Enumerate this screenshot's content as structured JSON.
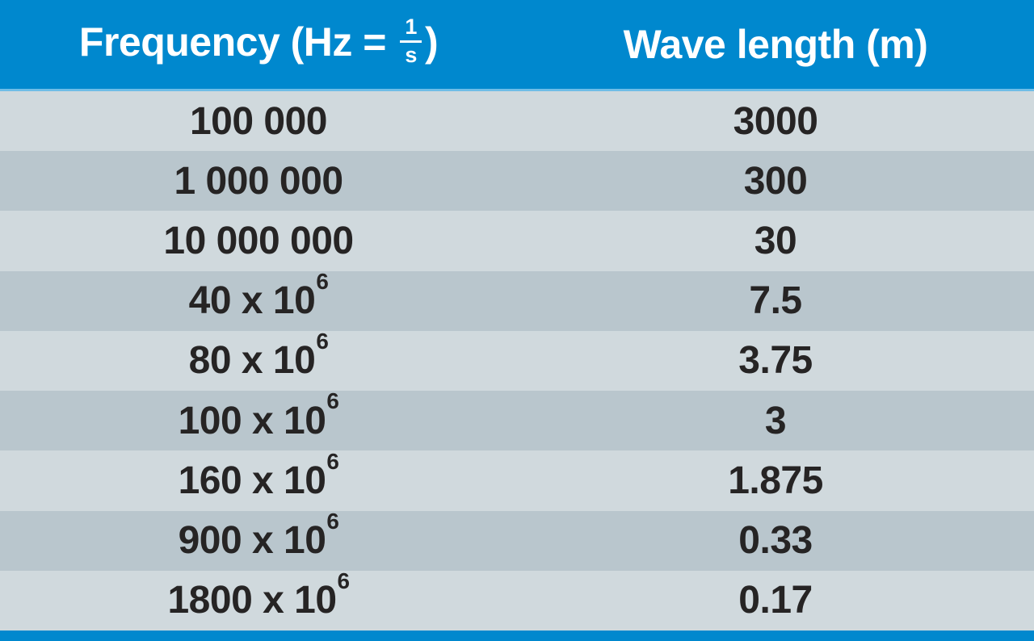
{
  "colors": {
    "header_bg": "#0088ce",
    "header_text": "#ffffff",
    "header_underline": "#6fbde7",
    "row_light": "#d0d9dd",
    "row_dark": "#b9c6cd",
    "cell_text": "#262424",
    "bottom_bar": "#0088ce"
  },
  "header": {
    "frequency": {
      "prefix": "Frequency (Hz = ",
      "fraction": {
        "numerator": "1",
        "denominator": "s"
      },
      "suffix": ")"
    },
    "wavelength": "Wave length (m)"
  },
  "rows": [
    {
      "frequency": {
        "base": "100 000",
        "sup": ""
      },
      "wavelength": "3000"
    },
    {
      "frequency": {
        "base": "1 000 000",
        "sup": ""
      },
      "wavelength": "300"
    },
    {
      "frequency": {
        "base": "10 000 000",
        "sup": ""
      },
      "wavelength": "30"
    },
    {
      "frequency": {
        "base": "40 x 10",
        "sup": "6"
      },
      "wavelength": "7.5"
    },
    {
      "frequency": {
        "base": "80 x 10",
        "sup": "6"
      },
      "wavelength": "3.75"
    },
    {
      "frequency": {
        "base": "100 x 10",
        "sup": "6"
      },
      "wavelength": "3"
    },
    {
      "frequency": {
        "base": "160 x 10",
        "sup": "6"
      },
      "wavelength": "1.875"
    },
    {
      "frequency": {
        "base": "900 x 10",
        "sup": "6"
      },
      "wavelength": "0.33"
    },
    {
      "frequency": {
        "base": "1800 x 10",
        "sup": "6"
      },
      "wavelength": "0.17"
    }
  ],
  "chart_data": {
    "type": "table",
    "columns": [
      "Frequency (Hz = 1/s)",
      "Wave length (m)"
    ],
    "rows": [
      [
        "100 000",
        "3000"
      ],
      [
        "1 000 000",
        "300"
      ],
      [
        "10 000 000",
        "30"
      ],
      [
        "40 x 10^6",
        "7.5"
      ],
      [
        "80 x 10^6",
        "3.75"
      ],
      [
        "100 x 10^6",
        "3"
      ],
      [
        "160 x 10^6",
        "1.875"
      ],
      [
        "900 x 10^6",
        "0.33"
      ],
      [
        "1800 x 10^6",
        "0.17"
      ]
    ],
    "layout_hints": {
      "header_style": "blue band, white bold text",
      "body_style": "alternating light/dark gray rows, centered bold values",
      "footer": "thin blue accent bar"
    }
  }
}
